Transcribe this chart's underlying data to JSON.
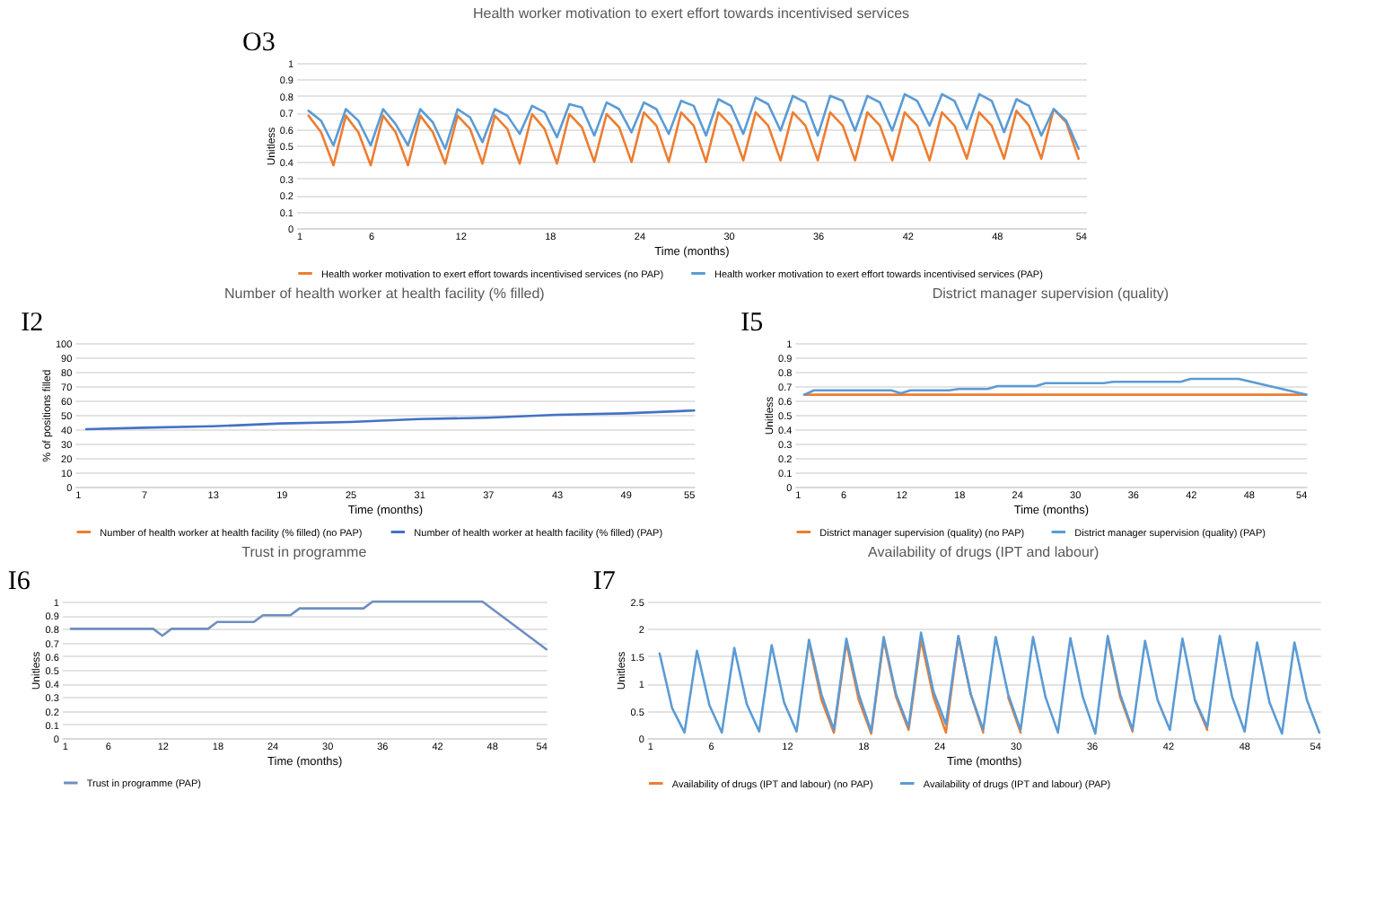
{
  "chart_data": [
    {
      "type": "line",
      "title": "Health worker motivation to exert effort towards incentivised services",
      "xlabel": "Time (months)",
      "ylabel": "Unitless",
      "annotations": [
        "O3"
      ],
      "xlim": [
        1,
        54
      ],
      "xticks": [
        1,
        6,
        12,
        18,
        24,
        30,
        36,
        42,
        48,
        54
      ],
      "ylim": [
        0,
        1
      ],
      "yticks": [
        0,
        0.1,
        0.2,
        0.3,
        0.4,
        0.5,
        0.6,
        0.7,
        0.8,
        0.9,
        1
      ],
      "grid": "y",
      "legend": "bottom",
      "x": [
        1.83,
        2.67,
        3.5,
        4.33,
        5.17,
        6,
        6.83,
        7.67,
        8.5,
        9.33,
        10.17,
        11,
        11.83,
        12.67,
        13.5,
        14.33,
        15.17,
        16,
        16.83,
        17.67,
        18.5,
        19.33,
        20.17,
        21,
        21.83,
        22.67,
        23.5,
        24.33,
        25.17,
        26,
        26.83,
        27.67,
        28.5,
        29.33,
        30.17,
        31,
        31.83,
        32.67,
        33.5,
        34.33,
        35.17,
        36,
        36.83,
        37.67,
        38.5,
        39.33,
        40.17,
        41,
        41.83,
        42.67,
        43.5,
        44.33,
        45.17,
        46,
        46.83,
        47.67,
        48.5,
        49.33,
        50.17,
        51,
        51.83,
        52.67,
        53.5
      ],
      "series": [
        {
          "name": "Health worker motivation to exert effort towards incentivised services (no PAP)",
          "color": "#ed7d31",
          "values": [
            0.68,
            0.58,
            0.38,
            0.68,
            0.58,
            0.38,
            0.68,
            0.58,
            0.38,
            0.68,
            0.58,
            0.39,
            0.68,
            0.6,
            0.39,
            0.68,
            0.6,
            0.39,
            0.69,
            0.6,
            0.39,
            0.69,
            0.61,
            0.4,
            0.69,
            0.61,
            0.4,
            0.7,
            0.62,
            0.4,
            0.7,
            0.62,
            0.4,
            0.7,
            0.62,
            0.41,
            0.7,
            0.62,
            0.41,
            0.7,
            0.62,
            0.41,
            0.7,
            0.62,
            0.41,
            0.7,
            0.62,
            0.41,
            0.7,
            0.62,
            0.41,
            0.7,
            0.62,
            0.42,
            0.7,
            0.62,
            0.42,
            0.71,
            0.62,
            0.42,
            0.72,
            0.64,
            0.42
          ]
        },
        {
          "name": "Health worker motivation to exert effort towards incentivised services (PAP)",
          "color": "#5b9bd5",
          "values": [
            0.71,
            0.65,
            0.5,
            0.72,
            0.65,
            0.5,
            0.72,
            0.63,
            0.5,
            0.72,
            0.64,
            0.48,
            0.72,
            0.67,
            0.52,
            0.72,
            0.68,
            0.57,
            0.74,
            0.7,
            0.55,
            0.75,
            0.73,
            0.56,
            0.76,
            0.72,
            0.58,
            0.76,
            0.72,
            0.57,
            0.77,
            0.74,
            0.56,
            0.78,
            0.74,
            0.57,
            0.79,
            0.75,
            0.59,
            0.8,
            0.76,
            0.56,
            0.8,
            0.77,
            0.59,
            0.8,
            0.76,
            0.59,
            0.81,
            0.77,
            0.62,
            0.81,
            0.77,
            0.6,
            0.81,
            0.77,
            0.58,
            0.78,
            0.74,
            0.56,
            0.72,
            0.65,
            0.48
          ]
        }
      ]
    },
    {
      "type": "line",
      "title": "Number of health worker at health facility (% filled)",
      "xlabel": "Time (months)",
      "ylabel": "% of positions filled",
      "annotations": [
        "I2"
      ],
      "xlim": [
        1,
        55
      ],
      "xticks": [
        1,
        7,
        13,
        19,
        25,
        31,
        37,
        43,
        49,
        55
      ],
      "ylim": [
        0,
        100
      ],
      "yticks": [
        0,
        10,
        20,
        30,
        40,
        50,
        60,
        70,
        80,
        90,
        100
      ],
      "grid": "y",
      "legend": "bottom",
      "x": [
        2,
        7,
        13,
        19,
        25,
        31,
        37,
        43,
        49,
        55
      ],
      "series": [
        {
          "name": "Number of health worker at health facility (% filled) (no PAP)",
          "color": "#ed7d31",
          "values": [
            null,
            null,
            null,
            null,
            null,
            null,
            null,
            null,
            null,
            null
          ]
        },
        {
          "name": "Number of health worker at health facility (% filled) (PAP)",
          "color": "#4472c4",
          "values": [
            40,
            41,
            42,
            44,
            45,
            47,
            48,
            50,
            51,
            53
          ]
        }
      ]
    },
    {
      "type": "line",
      "title": "District manager supervision  (quality)",
      "xlabel": "Time (months)",
      "ylabel": "Unitless",
      "annotations": [
        "I5"
      ],
      "xlim": [
        1,
        54
      ],
      "xticks": [
        1,
        6,
        12,
        18,
        24,
        30,
        36,
        42,
        48,
        54
      ],
      "ylim": [
        0,
        1
      ],
      "yticks": [
        0,
        0.1,
        0.2,
        0.3,
        0.4,
        0.5,
        0.6,
        0.7,
        0.8,
        0.9,
        1
      ],
      "grid": "y",
      "legend": "bottom",
      "series": [
        {
          "name": "District manager supervision (quality) (no PAP)",
          "color": "#ed7d31",
          "x": [
            2,
            54
          ],
          "values": [
            0.64,
            0.64
          ]
        },
        {
          "name": "District manager supervision (quality) (PAP)",
          "color": "#5b9bd5",
          "x": [
            2,
            3,
            11,
            12,
            13,
            17,
            18,
            21,
            22,
            26,
            27,
            33,
            34,
            41,
            42,
            47,
            54
          ],
          "values": [
            0.64,
            0.67,
            0.67,
            0.65,
            0.67,
            0.67,
            0.68,
            0.68,
            0.7,
            0.7,
            0.72,
            0.72,
            0.73,
            0.73,
            0.75,
            0.75,
            0.64
          ]
        }
      ]
    },
    {
      "type": "line",
      "title": "Trust in programme",
      "xlabel": "Time (months)",
      "ylabel": "Unitless",
      "annotations": [
        "I6"
      ],
      "xlim": [
        1,
        54
      ],
      "xticks": [
        1,
        6,
        12,
        18,
        24,
        30,
        36,
        42,
        48,
        54
      ],
      "ylim": [
        0,
        1
      ],
      "yticks": [
        0,
        0.1,
        0.2,
        0.3,
        0.4,
        0.5,
        0.6,
        0.7,
        0.8,
        0.9,
        1
      ],
      "grid": "y",
      "legend": "bottom",
      "series": [
        {
          "name": "Trust in programme (PAP)",
          "color": "#6f8fc0",
          "x": [
            2,
            11,
            12,
            13,
            17,
            18,
            22,
            23,
            26,
            27,
            34,
            35,
            47,
            54
          ],
          "values": [
            0.8,
            0.8,
            0.75,
            0.8,
            0.8,
            0.85,
            0.85,
            0.9,
            0.9,
            0.95,
            0.95,
            1,
            1,
            0.65
          ]
        }
      ]
    },
    {
      "type": "line",
      "title": "Availability of drugs (IPT and labour)",
      "xlabel": "Time (months)",
      "ylabel": "Unitless",
      "annotations": [
        "I7"
      ],
      "xlim": [
        1,
        54
      ],
      "xticks": [
        1,
        6,
        12,
        18,
        24,
        30,
        36,
        42,
        48,
        54
      ],
      "ylim": [
        0,
        2.5
      ],
      "yticks": [
        0,
        0.5,
        1,
        1.5,
        2,
        2.5
      ],
      "grid": "y",
      "legend": "bottom",
      "x": [
        2,
        2.98,
        3.96,
        4.94,
        5.92,
        6.9,
        7.88,
        8.86,
        9.84,
        10.82,
        11.8,
        12.78,
        13.76,
        14.74,
        15.72,
        16.7,
        17.68,
        18.66,
        19.64,
        20.62,
        21.6,
        22.58,
        23.56,
        24.54,
        25.52,
        26.5,
        27.48,
        28.46,
        29.44,
        30.42,
        31.4,
        32.38,
        33.36,
        34.34,
        35.32,
        36.3,
        37.28,
        38.26,
        39.24,
        40.22,
        41.2,
        42.18,
        43.16,
        44.14,
        45.12,
        46.1,
        47.08,
        48.06,
        49.04,
        50.02,
        51,
        51.98,
        52.96,
        53.94
      ],
      "series": [
        {
          "name": "Availability of drugs (IPT and labour) (no PAP)",
          "color": "#ed7d31",
          "values": [
            null,
            null,
            null,
            null,
            null,
            null,
            null,
            null,
            null,
            null,
            null,
            null,
            1.75,
            0.7,
            0.1,
            1.75,
            0.7,
            0.08,
            1.8,
            0.75,
            0.15,
            1.8,
            0.75,
            0.1,
            1.85,
            0.8,
            0.1,
            null,
            0.75,
            0.1,
            null,
            null,
            null,
            null,
            null,
            null,
            1.82,
            0.75,
            0.12,
            null,
            null,
            null,
            null,
            0.7,
            0.15,
            null,
            null,
            null,
            null,
            null,
            null,
            null,
            null,
            null
          ]
        },
        {
          "name": "Availability of drugs (IPT and labour) (PAP)",
          "color": "#5b9bd5",
          "values": [
            1.55,
            0.55,
            0.1,
            1.6,
            0.6,
            0.1,
            1.65,
            0.62,
            0.12,
            1.7,
            0.65,
            0.12,
            1.8,
            0.8,
            0.15,
            1.82,
            0.8,
            0.12,
            1.85,
            0.8,
            0.2,
            1.93,
            0.85,
            0.25,
            1.87,
            0.8,
            0.15,
            1.85,
            0.8,
            0.15,
            1.85,
            0.75,
            0.1,
            1.83,
            0.75,
            0.08,
            1.87,
            0.8,
            0.15,
            1.78,
            0.7,
            0.15,
            1.82,
            0.7,
            0.2,
            1.87,
            0.75,
            0.12,
            1.75,
            0.65,
            0.08,
            1.75,
            0.7,
            0.1
          ]
        }
      ]
    }
  ]
}
